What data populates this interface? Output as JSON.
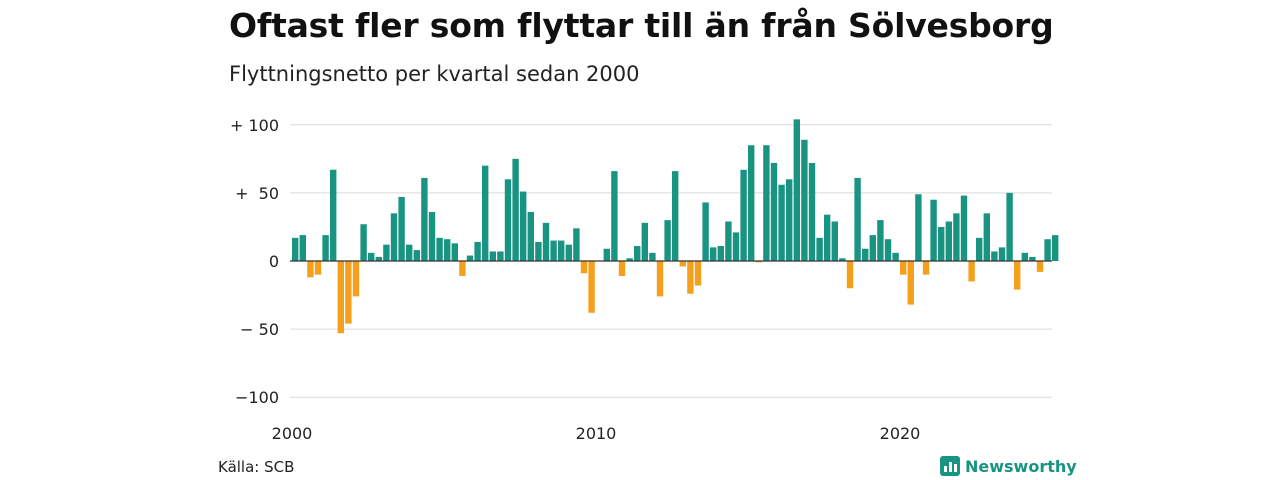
{
  "title": "Oftast fler som flyttar till än från Sölvesborg",
  "subtitle": "Flyttningsnetto per kvartal sedan 2000",
  "source": "Källa: SCB",
  "brand": {
    "name": "Newsworthy",
    "icon": "newsworthy-logo-icon",
    "color": "#1a9482"
  },
  "chart_data": {
    "type": "bar",
    "title": "Oftast fler som flyttar till än från Sölvesborg",
    "subtitle": "Flyttningsnetto per kvartal sedan 2000",
    "ylim": [
      -100,
      100
    ],
    "y_ticks": [
      100,
      50,
      0,
      -50,
      -100
    ],
    "y_tick_labels": [
      "+ 100",
      "+  50",
      "0",
      "− 50",
      "−100"
    ],
    "x_tick_years": [
      2000,
      2010,
      2020
    ],
    "x_tick_labels": [
      "2000",
      "2010",
      "2020"
    ],
    "x_start_year": 2000,
    "grid": true,
    "colors": {
      "positive": "#1a9482",
      "negative": "#f5a01d",
      "grid": "#d9d9d9",
      "baseline": "#333333"
    },
    "values": [
      17,
      19,
      -12,
      -10,
      19,
      67,
      -53,
      -46,
      -26,
      27,
      6,
      3,
      12,
      35,
      47,
      12,
      8,
      61,
      36,
      17,
      16,
      13,
      -11,
      4,
      14,
      70,
      7,
      7,
      60,
      75,
      51,
      36,
      14,
      28,
      15,
      15,
      12,
      24,
      -9,
      -38,
      0,
      9,
      66,
      -11,
      2,
      11,
      28,
      6,
      -26,
      30,
      66,
      -4,
      -24,
      -18,
      43,
      10,
      11,
      29,
      21,
      67,
      85,
      -1,
      85,
      72,
      56,
      60,
      104,
      89,
      72,
      17,
      34,
      29,
      2,
      -20,
      61,
      9,
      19,
      30,
      16,
      6,
      -10,
      -32,
      49,
      -10,
      45,
      25,
      29,
      35,
      48,
      -15,
      17,
      35,
      7,
      10,
      50,
      -21,
      6,
      3,
      -8,
      16,
      19
    ]
  }
}
